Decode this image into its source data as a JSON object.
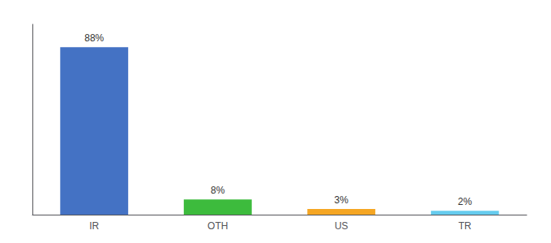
{
  "chart_data": {
    "type": "bar",
    "categories": [
      "IR",
      "OTH",
      "US",
      "TR"
    ],
    "values": [
      88,
      8,
      3,
      2
    ],
    "value_labels": [
      "88%",
      "8%",
      "3%",
      "2%"
    ],
    "colors": [
      "#4472c4",
      "#3dbb3d",
      "#f5a623",
      "#66ccee"
    ],
    "ylim": [
      0,
      100
    ],
    "tick_labels": "x",
    "data_labels": true,
    "grid": false
  }
}
